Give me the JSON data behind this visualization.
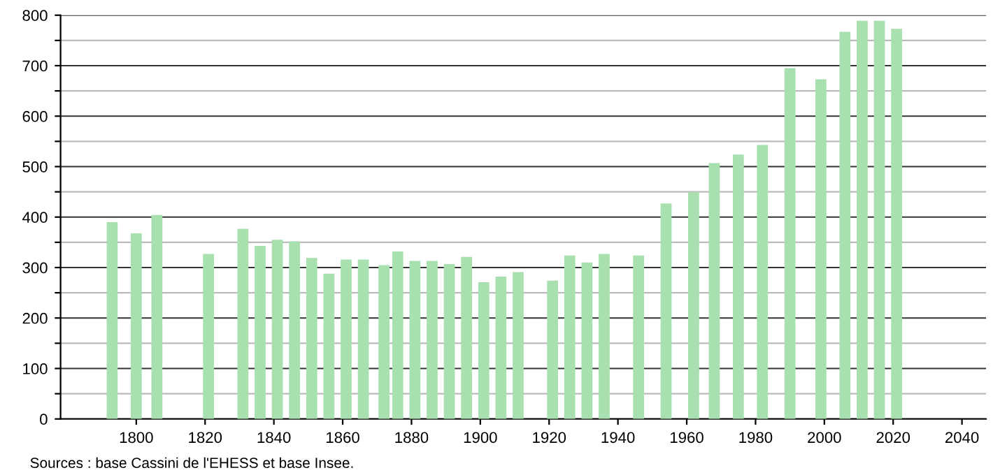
{
  "chart_data": {
    "type": "bar",
    "x": [
      1793,
      1800,
      1806,
      1821,
      1831,
      1836,
      1841,
      1846,
      1851,
      1856,
      1861,
      1866,
      1872,
      1876,
      1881,
      1886,
      1891,
      1896,
      1901,
      1906,
      1911,
      1921,
      1926,
      1931,
      1936,
      1946,
      1954,
      1962,
      1968,
      1975,
      1982,
      1990,
      1999,
      2006,
      2011,
      2016,
      2021
    ],
    "values": [
      390,
      368,
      404,
      327,
      377,
      343,
      355,
      352,
      319,
      288,
      316,
      316,
      305,
      332,
      313,
      313,
      307,
      321,
      271,
      282,
      291,
      274,
      324,
      310,
      327,
      324,
      427,
      449,
      507,
      524,
      543,
      695,
      673,
      767,
      789,
      789,
      773
    ],
    "color": "#a8e0b0",
    "xlim": [
      1778,
      2047
    ],
    "xticks": [
      1800,
      1820,
      1840,
      1860,
      1880,
      1900,
      1920,
      1940,
      1960,
      1980,
      2000,
      2020,
      2040
    ],
    "ylim": [
      0,
      800
    ],
    "yticks": [
      0,
      {
        "value": 50,
        "label": null
      },
      100,
      {
        "value": 150,
        "label": null
      },
      200,
      {
        "value": 250,
        "label": null
      },
      300,
      {
        "value": 350,
        "label": null
      },
      400,
      {
        "value": 450,
        "label": null
      },
      500,
      {
        "value": 550,
        "label": null
      },
      600,
      {
        "value": 650,
        "label": null
      },
      700,
      {
        "value": 750,
        "label": null
      },
      800
    ],
    "grid": "y",
    "annotations": [
      "Sources : base Cassini de l'EHESS et base Insee."
    ]
  }
}
